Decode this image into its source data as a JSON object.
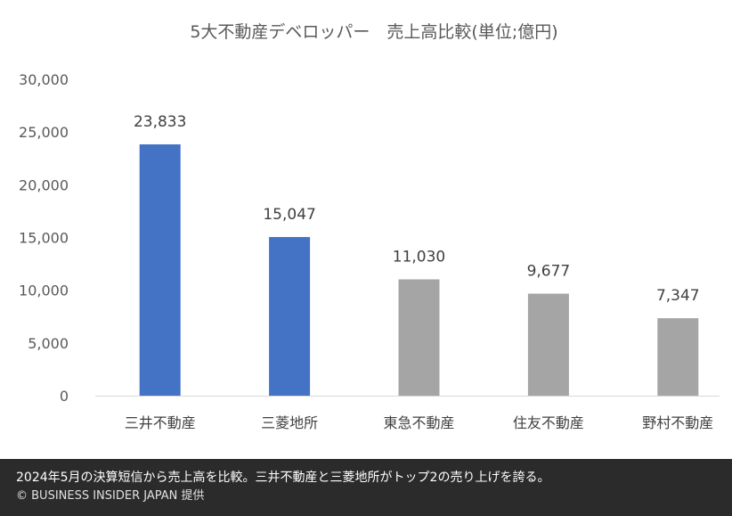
{
  "chart_data": {
    "type": "bar",
    "title": "5大不動産デベロッパー　売上高比較(単位;億円)",
    "categories": [
      "三井不動産",
      "三菱地所",
      "東急不動産",
      "住友不動産",
      "野村不動産"
    ],
    "values": [
      23833,
      15047,
      11030,
      9677,
      7347
    ],
    "value_labels": [
      "23,833",
      "15,047",
      "11,030",
      "9,677",
      "7,347"
    ],
    "bar_colors": [
      "#4472c4",
      "#4472c4",
      "#a5a5a5",
      "#a5a5a5",
      "#a5a5a5"
    ],
    "ylim": [
      0,
      30000
    ],
    "yticks": [
      0,
      5000,
      10000,
      15000,
      20000,
      25000,
      30000
    ],
    "ytick_labels": [
      "0",
      "5,000",
      "10,000",
      "15,000",
      "20,000",
      "25,000",
      "30,000"
    ],
    "xlabel": "",
    "ylabel": "",
    "grid": false,
    "legend": false
  },
  "caption": {
    "text": "2024年5月の決算短信から売上高を比較。三井不動産と三菱地所がトップ2の売り上げを誇る。",
    "credit": "© BUSINESS INSIDER JAPAN 提供"
  }
}
